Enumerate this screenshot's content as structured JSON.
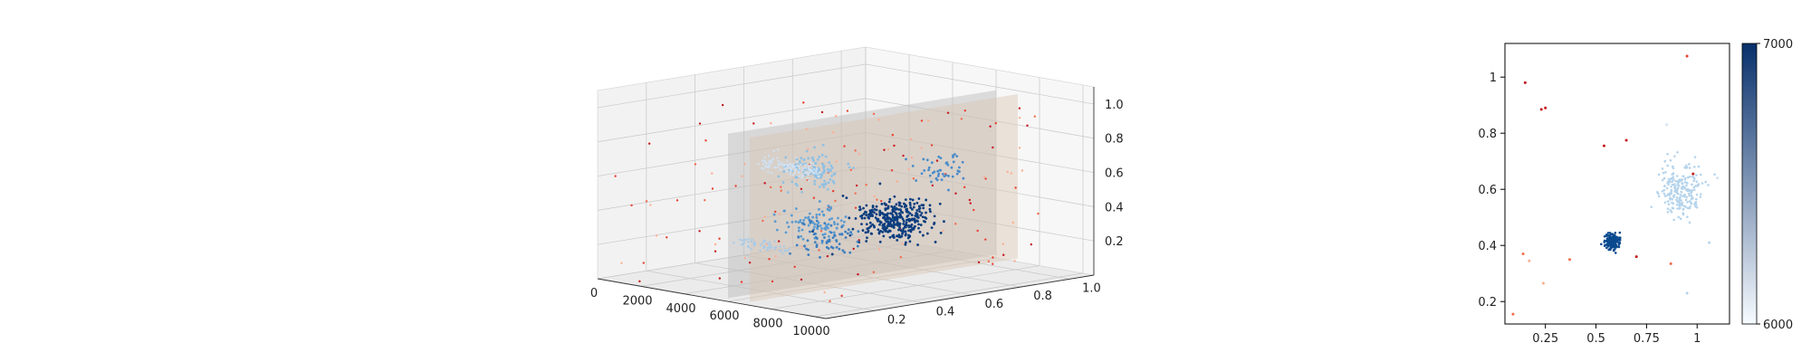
{
  "chart_data": [
    {
      "type": "scatter",
      "projection": "3d",
      "title": "",
      "x_ticks": [
        "0",
        "2000",
        "4000",
        "6000",
        "8000",
        "10000"
      ],
      "y_ticks": [
        "0.2",
        "0.4",
        "0.6",
        "0.8",
        "1.0"
      ],
      "z_ticks": [
        "0.2",
        "0.4",
        "0.6",
        "0.8",
        "1.0"
      ],
      "xlim": [
        0,
        10500
      ],
      "ylim": [
        0,
        1.1
      ],
      "zlim": [
        0,
        1.1
      ],
      "grid": true,
      "clusters": [
        {
          "x": 9000,
          "y": 0.42,
          "z": 0.45,
          "n": 340,
          "spread": 0.06,
          "color": "#0b3d7e"
        },
        {
          "x": 5000,
          "y": 0.45,
          "z": 0.33,
          "n": 90,
          "spread": 0.05,
          "color": "#5b9bd0"
        },
        {
          "x": 3000,
          "y": 0.62,
          "z": 0.55,
          "n": 110,
          "spread": 0.05,
          "color": "#8fc0e3"
        },
        {
          "x": 7000,
          "y": 0.78,
          "z": 0.62,
          "n": 45,
          "spread": 0.04,
          "color": "#4a8cc8"
        },
        {
          "x": 6000,
          "y": 0.4,
          "z": 0.28,
          "n": 60,
          "spread": 0.05,
          "color": "#3d7fbf"
        }
      ],
      "outlier_color": "#e8402f",
      "planes": [
        {
          "x": 6000,
          "color": "#b8b8b8"
        },
        {
          "x": 7000,
          "color": "#d9c6b4"
        }
      ]
    },
    {
      "type": "scatter",
      "title": "",
      "xlabel": "",
      "ylabel": "",
      "x_ticks": [
        0.25,
        0.5,
        0.75,
        1.0
      ],
      "y_ticks": [
        0.2,
        0.4,
        0.6,
        0.8,
        1.0
      ],
      "xlim": [
        0.05,
        1.16
      ],
      "ylim": [
        0.12,
        1.12
      ],
      "clusters": [
        {
          "x": 0.58,
          "y": 0.415,
          "n": 180,
          "spread": 0.018,
          "color": "#0b4a8f"
        },
        {
          "x": 0.92,
          "y": 0.6,
          "n": 220,
          "spread": 0.05,
          "color": "#b6d4ec"
        }
      ],
      "outliers": [
        {
          "x": 0.15,
          "y": 0.98,
          "color": "#c4161c"
        },
        {
          "x": 0.23,
          "y": 0.885,
          "color": "#c4161c"
        },
        {
          "x": 0.25,
          "y": 0.89,
          "color": "#c4161c"
        },
        {
          "x": 0.54,
          "y": 0.755,
          "color": "#c4161c"
        },
        {
          "x": 0.65,
          "y": 0.775,
          "color": "#c4161c"
        },
        {
          "x": 0.95,
          "y": 1.075,
          "color": "#e8402f"
        },
        {
          "x": 0.98,
          "y": 0.655,
          "color": "#c4161c"
        },
        {
          "x": 0.14,
          "y": 0.37,
          "color": "#f26b4a"
        },
        {
          "x": 0.17,
          "y": 0.345,
          "color": "#fcae91"
        },
        {
          "x": 0.37,
          "y": 0.35,
          "color": "#f26b4a"
        },
        {
          "x": 0.7,
          "y": 0.36,
          "color": "#c4161c"
        },
        {
          "x": 0.87,
          "y": 0.335,
          "color": "#f26b4a"
        },
        {
          "x": 0.09,
          "y": 0.155,
          "color": "#f26b4a"
        },
        {
          "x": 0.24,
          "y": 0.265,
          "color": "#fcae91"
        },
        {
          "x": 0.95,
          "y": 0.23,
          "color": "#b6d4ec"
        },
        {
          "x": 1.06,
          "y": 0.41,
          "color": "#b6d4ec"
        },
        {
          "x": 1.1,
          "y": 0.64,
          "color": "#d3e4f3"
        },
        {
          "x": 0.85,
          "y": 0.83,
          "color": "#d3e4f3"
        }
      ],
      "colorbar": {
        "min": 6000,
        "max": 7000,
        "min_label": "6000",
        "max_label": "7000",
        "colors": [
          "#f7fbff",
          "#08306b"
        ]
      }
    }
  ]
}
